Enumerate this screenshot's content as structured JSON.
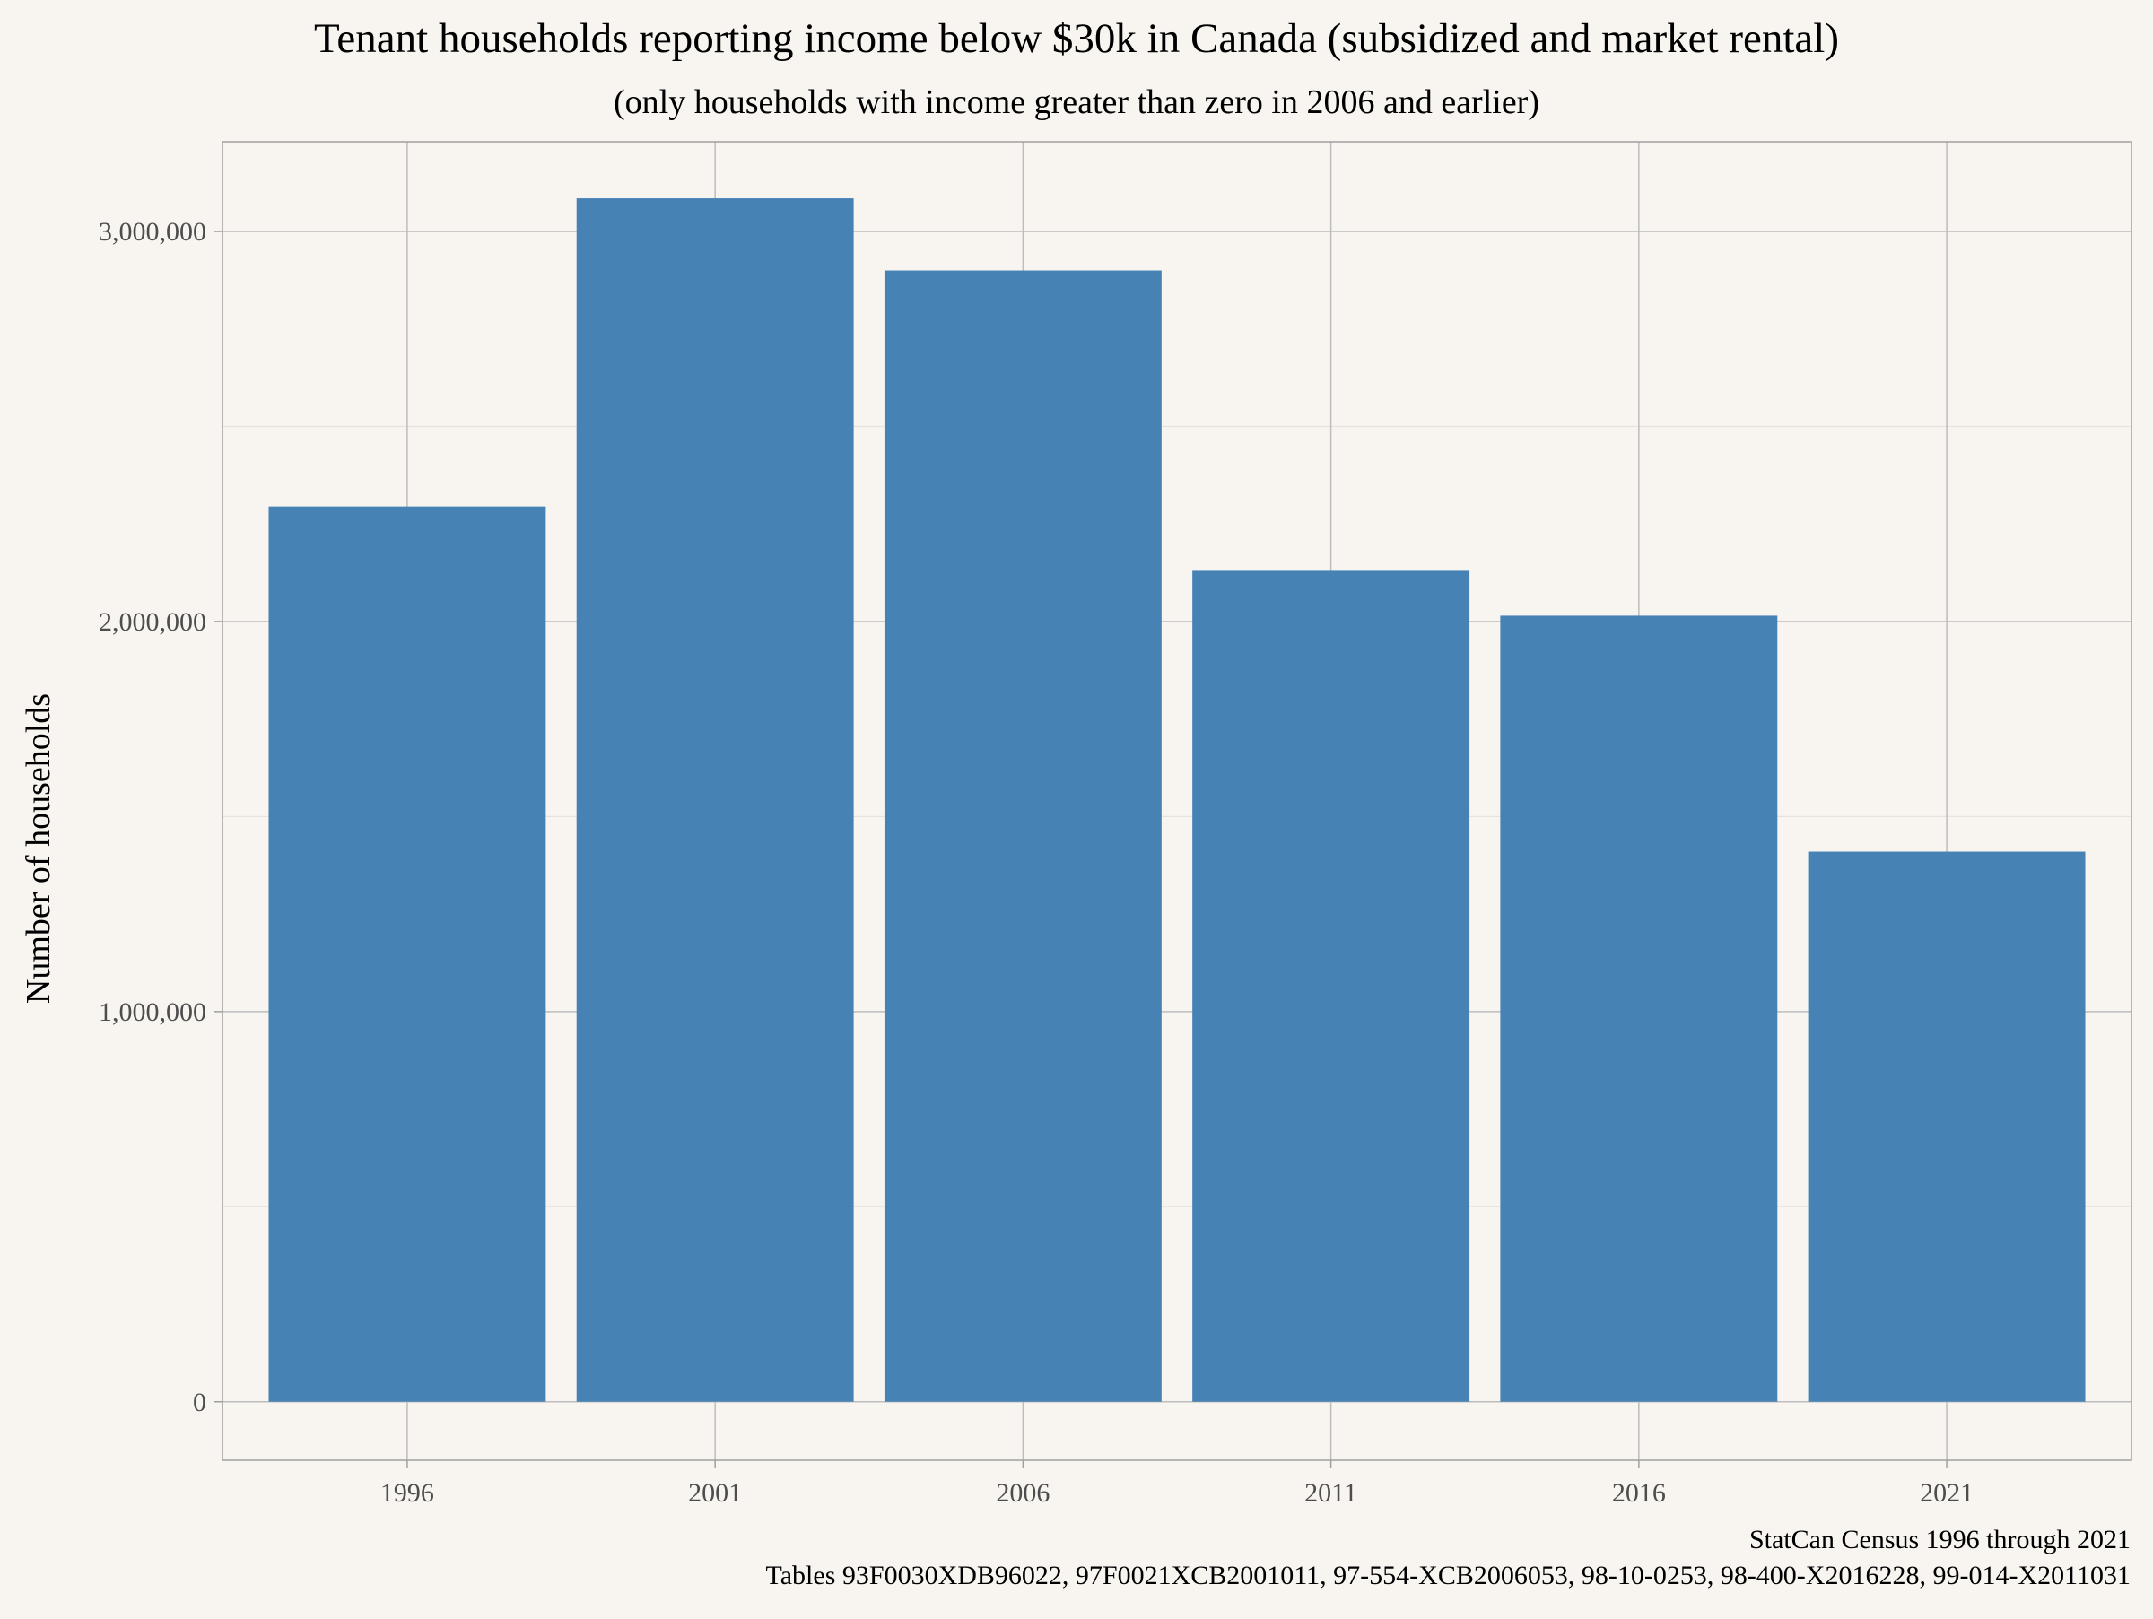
{
  "colors": {
    "background": "#f8f5f1",
    "bar": "#4682b4",
    "grid_major": "#bdbdbd",
    "grid_minor": "#e6e3df",
    "panel_border": "#a0a0a0",
    "tick_text": "#4d4d4d"
  },
  "chart_data": {
    "type": "bar",
    "title": "Tenant households reporting income below $30k in Canada (subsidized and market rental)",
    "subtitle": "(only households with income greater than zero in 2006 and earlier)",
    "xlabel": "",
    "ylabel": "Number of households",
    "categories": [
      "1996",
      "2001",
      "2006",
      "2011",
      "2016",
      "2021"
    ],
    "values": [
      2295000,
      3085000,
      2900000,
      2130000,
      2015000,
      1410000
    ],
    "ylim": [
      -150000,
      3230000
    ],
    "y_ticks": [
      0,
      1000000,
      2000000,
      3000000
    ],
    "y_tick_labels": [
      "0",
      "1,000,000",
      "2,000,000",
      "3,000,000"
    ],
    "y_minor_ticks": [
      500000,
      1500000,
      2500000
    ],
    "grid": true,
    "legend": "none",
    "caption_lines": [
      "StatCan Census 1996 through 2021",
      "Tables 93F0030XDB96022, 97F0021XCB2001011, 97-554-XCB2006053, 98-10-0253, 98-400-X2016228, 99-014-X2011031"
    ]
  }
}
